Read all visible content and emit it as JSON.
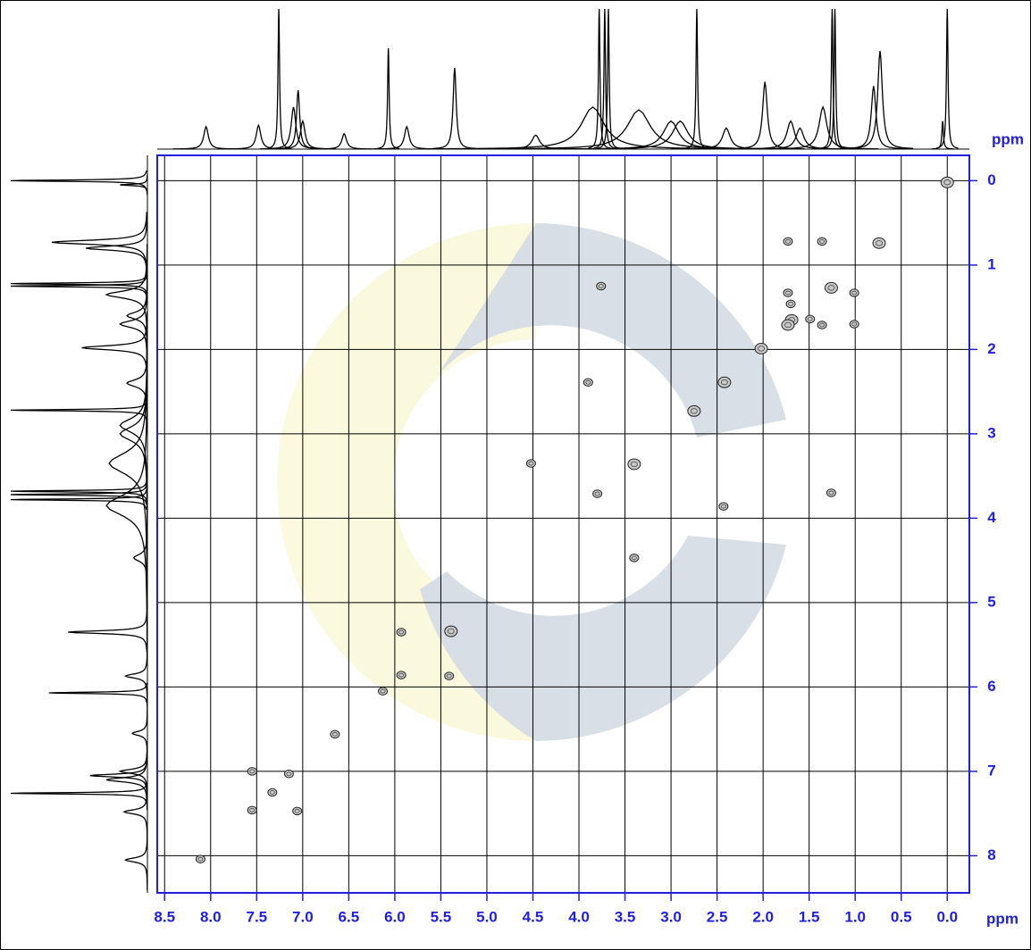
{
  "chart_data": {
    "type": "cosy",
    "x_label": "ppm",
    "y_label": "ppm",
    "xlim": [
      8.58,
      -0.24
    ],
    "ylim": [
      -0.3,
      8.44
    ],
    "xticks": [
      {
        "value": 8.5,
        "label": "8.5"
      },
      {
        "value": 8,
        "label": "8.0"
      },
      {
        "value": 7.5,
        "label": "7.5"
      },
      {
        "value": 7,
        "label": "7.0"
      },
      {
        "value": 6.5,
        "label": "6.5"
      },
      {
        "value": 6,
        "label": "6.0"
      },
      {
        "value": 5.5,
        "label": "5.5"
      },
      {
        "value": 5,
        "label": "5.0"
      },
      {
        "value": 4.5,
        "label": "4.5"
      },
      {
        "value": 4,
        "label": "4.0"
      },
      {
        "value": 3.5,
        "label": "3.5"
      },
      {
        "value": 3,
        "label": "3.0"
      },
      {
        "value": 2.5,
        "label": "2.5"
      },
      {
        "value": 2,
        "label": "2.0"
      },
      {
        "value": 1.5,
        "label": "1.5"
      },
      {
        "value": 1,
        "label": "1.0"
      },
      {
        "value": 0.5,
        "label": "0.5"
      },
      {
        "value": 0,
        "label": "0.0"
      }
    ],
    "yticks": [
      0,
      1,
      2,
      3,
      4,
      5,
      6,
      7,
      8
    ],
    "grid": true,
    "axis_color": "#1f1fe0",
    "trace_color": "#000000",
    "projection": {
      "shifts": [
        8.05,
        7.48,
        7.26,
        7.1,
        7.05,
        7.0,
        6.55,
        6.07,
        5.87,
        5.35,
        4.47,
        3.85,
        3.78,
        3.72,
        3.68,
        3.35,
        3.0,
        2.9,
        2.72,
        2.4,
        1.98,
        1.7,
        1.6,
        1.35,
        1.25,
        1.22,
        0.8,
        0.73,
        0.05,
        0.0
      ],
      "heights": [
        0.16,
        0.17,
        1.0,
        0.3,
        0.42,
        0.2,
        0.11,
        0.72,
        0.16,
        0.58,
        0.1,
        0.3,
        1.0,
        1.0,
        1.0,
        0.28,
        0.2,
        0.2,
        1.0,
        0.15,
        0.48,
        0.2,
        0.15,
        0.3,
        1.0,
        1.0,
        0.45,
        0.7,
        0.2,
        1.0
      ],
      "widths": [
        0.03,
        0.03,
        0.01,
        0.03,
        0.02,
        0.03,
        0.03,
        0.01,
        0.03,
        0.02,
        0.05,
        0.15,
        0.01,
        0.01,
        0.01,
        0.15,
        0.1,
        0.1,
        0.01,
        0.05,
        0.03,
        0.05,
        0.05,
        0.05,
        0.01,
        0.01,
        0.03,
        0.03,
        0.01,
        0.01
      ]
    },
    "cross_peaks": {
      "x": [
        0.0,
        0.74,
        1.26,
        1.73,
        1.36,
        1.01,
        1.01,
        1.73,
        1.7,
        1.69,
        1.73,
        1.49,
        1.36,
        2.02,
        2.75,
        2.42,
        3.76,
        3.8,
        1.26,
        4.52,
        3.4,
        3.4,
        3.9,
        2.43,
        5.39,
        5.93,
        5.41,
        5.93,
        6.13,
        6.65,
        7.15,
        7.33,
        7.55,
        8.11,
        7.55,
        7.06
      ],
      "y": [
        0.02,
        0.74,
        1.27,
        0.72,
        0.72,
        1.33,
        1.7,
        1.33,
        1.46,
        1.65,
        1.71,
        1.64,
        1.71,
        1.99,
        2.73,
        2.39,
        1.25,
        3.71,
        3.7,
        3.35,
        4.47,
        3.36,
        2.39,
        3.86,
        5.34,
        5.35,
        5.87,
        5.86,
        6.05,
        6.56,
        7.03,
        7.25,
        7.46,
        8.04,
        7.0,
        7.47
      ]
    }
  }
}
